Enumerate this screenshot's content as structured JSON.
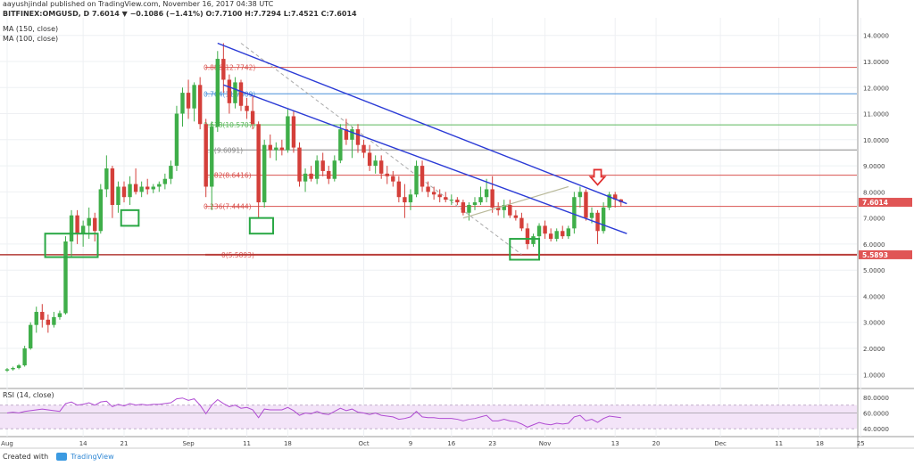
{
  "header": {
    "line1": "aayushjindal published on TradingView.com, November 16, 2017 04:38 UTC",
    "line2": "BITFINEX:OMGUSD, D 7.6014 ▼ −0.1086 (−1.41%) O:7.7100 H:7.7294 L:7.4521 C:7.6014",
    "indicator1": "MA (150, close)",
    "indicator2": "MA (100, close)"
  },
  "footer": {
    "created_with": "Created with",
    "brand": "TradingView"
  },
  "colors": {
    "bull": "#3fae49",
    "bear": "#d43f3a",
    "trend": "#2b3bd6",
    "fib_line": "#d9534f",
    "box": "#2aa845",
    "rsi": "#b04bd3",
    "price_tag": "#e05555"
  },
  "chart_data": [
    {
      "type": "candlestick",
      "symbol": "BITFINEX:OMGUSD",
      "timeframe": "D",
      "ylim": [
        0.6,
        14.4
      ],
      "y_ticks": [
        "1.0000",
        "2.0000",
        "3.0000",
        "4.0000",
        "5.0000",
        "6.0000",
        "7.0000",
        "8.0000",
        "9.0000",
        "10.0000",
        "11.0000",
        "12.0000",
        "13.0000",
        "14.0000"
      ],
      "x_ticks": [
        "Aug",
        "14",
        "21",
        "Sep",
        "11",
        "18",
        "Oct",
        "9",
        "16",
        "23",
        "Nov",
        "13",
        "20",
        "Dec",
        "11",
        "18",
        "25"
      ],
      "x_tick_days": [
        0,
        13,
        20,
        31,
        41,
        48,
        61,
        69,
        76,
        83,
        92,
        104,
        111,
        122,
        132,
        139,
        146
      ],
      "candles": [
        {
          "o": 1.15,
          "h": 1.25,
          "l": 1.1,
          "c": 1.2
        },
        {
          "o": 1.2,
          "h": 1.3,
          "l": 1.15,
          "c": 1.25
        },
        {
          "o": 1.25,
          "h": 1.4,
          "l": 1.2,
          "c": 1.35
        },
        {
          "o": 1.35,
          "h": 2.1,
          "l": 1.3,
          "c": 2.0
        },
        {
          "o": 2.0,
          "h": 3.0,
          "l": 1.95,
          "c": 2.9
        },
        {
          "o": 2.9,
          "h": 3.6,
          "l": 2.6,
          "c": 3.4
        },
        {
          "o": 3.4,
          "h": 3.7,
          "l": 2.8,
          "c": 3.1
        },
        {
          "o": 3.1,
          "h": 3.3,
          "l": 2.6,
          "c": 2.9
        },
        {
          "o": 2.9,
          "h": 3.4,
          "l": 2.8,
          "c": 3.2
        },
        {
          "o": 3.2,
          "h": 3.45,
          "l": 3.1,
          "c": 3.35
        },
        {
          "o": 3.35,
          "h": 6.3,
          "l": 3.3,
          "c": 6.1
        },
        {
          "o": 6.1,
          "h": 7.3,
          "l": 5.5,
          "c": 7.1
        },
        {
          "o": 7.1,
          "h": 7.3,
          "l": 6.0,
          "c": 6.4
        },
        {
          "o": 6.4,
          "h": 6.9,
          "l": 5.9,
          "c": 6.7
        },
        {
          "o": 6.7,
          "h": 7.4,
          "l": 6.2,
          "c": 7.0
        },
        {
          "o": 7.0,
          "h": 7.2,
          "l": 6.1,
          "c": 6.5
        },
        {
          "o": 6.5,
          "h": 8.3,
          "l": 6.4,
          "c": 8.1
        },
        {
          "o": 8.1,
          "h": 9.4,
          "l": 7.8,
          "c": 8.9
        },
        {
          "o": 8.9,
          "h": 9.0,
          "l": 7.0,
          "c": 7.5
        },
        {
          "o": 7.5,
          "h": 8.4,
          "l": 7.2,
          "c": 8.2
        },
        {
          "o": 8.2,
          "h": 8.4,
          "l": 7.6,
          "c": 7.8
        },
        {
          "o": 7.8,
          "h": 8.6,
          "l": 7.5,
          "c": 8.3
        },
        {
          "o": 8.3,
          "h": 8.9,
          "l": 7.9,
          "c": 8.0
        },
        {
          "o": 8.0,
          "h": 8.4,
          "l": 7.8,
          "c": 8.2
        },
        {
          "o": 8.2,
          "h": 8.5,
          "l": 7.9,
          "c": 8.1
        },
        {
          "o": 8.1,
          "h": 8.3,
          "l": 7.95,
          "c": 8.2
        },
        {
          "o": 8.2,
          "h": 8.4,
          "l": 8.0,
          "c": 8.3
        },
        {
          "o": 8.3,
          "h": 8.7,
          "l": 8.1,
          "c": 8.5
        },
        {
          "o": 8.5,
          "h": 9.2,
          "l": 8.3,
          "c": 9.0
        },
        {
          "o": 9.0,
          "h": 11.3,
          "l": 8.8,
          "c": 11.0
        },
        {
          "o": 11.0,
          "h": 12.0,
          "l": 10.5,
          "c": 11.8
        },
        {
          "o": 11.8,
          "h": 12.3,
          "l": 10.8,
          "c": 11.2
        },
        {
          "o": 11.2,
          "h": 12.2,
          "l": 10.7,
          "c": 12.1
        },
        {
          "o": 12.1,
          "h": 12.4,
          "l": 10.4,
          "c": 10.6
        },
        {
          "o": 10.6,
          "h": 10.8,
          "l": 7.8,
          "c": 8.2
        },
        {
          "o": 8.2,
          "h": 10.7,
          "l": 7.3,
          "c": 10.5
        },
        {
          "o": 10.5,
          "h": 13.4,
          "l": 10.3,
          "c": 13.1
        },
        {
          "o": 13.1,
          "h": 13.7,
          "l": 11.8,
          "c": 12.3
        },
        {
          "o": 12.3,
          "h": 12.5,
          "l": 11.0,
          "c": 11.4
        },
        {
          "o": 11.4,
          "h": 12.4,
          "l": 11.2,
          "c": 12.2
        },
        {
          "o": 12.2,
          "h": 12.3,
          "l": 11.1,
          "c": 11.3
        },
        {
          "o": 11.3,
          "h": 11.6,
          "l": 10.8,
          "c": 11.1
        },
        {
          "o": 11.1,
          "h": 11.7,
          "l": 10.4,
          "c": 10.6
        },
        {
          "o": 10.6,
          "h": 10.7,
          "l": 7.0,
          "c": 7.6
        },
        {
          "o": 7.6,
          "h": 10.0,
          "l": 7.4,
          "c": 9.8
        },
        {
          "o": 9.8,
          "h": 10.2,
          "l": 9.3,
          "c": 9.6
        },
        {
          "o": 9.6,
          "h": 9.9,
          "l": 9.2,
          "c": 9.7
        },
        {
          "o": 9.7,
          "h": 10.0,
          "l": 9.4,
          "c": 9.6
        },
        {
          "o": 9.6,
          "h": 11.2,
          "l": 9.5,
          "c": 10.9
        },
        {
          "o": 10.9,
          "h": 11.1,
          "l": 9.5,
          "c": 9.7
        },
        {
          "o": 9.7,
          "h": 9.9,
          "l": 8.2,
          "c": 8.4
        },
        {
          "o": 8.4,
          "h": 8.9,
          "l": 8.0,
          "c": 8.7
        },
        {
          "o": 8.7,
          "h": 9.0,
          "l": 8.4,
          "c": 8.5
        },
        {
          "o": 8.5,
          "h": 9.4,
          "l": 8.3,
          "c": 9.2
        },
        {
          "o": 9.2,
          "h": 9.5,
          "l": 8.6,
          "c": 8.8
        },
        {
          "o": 8.8,
          "h": 9.0,
          "l": 8.3,
          "c": 8.5
        },
        {
          "o": 8.5,
          "h": 9.4,
          "l": 8.4,
          "c": 9.2
        },
        {
          "o": 9.2,
          "h": 10.6,
          "l": 9.1,
          "c": 10.4
        },
        {
          "o": 10.4,
          "h": 10.8,
          "l": 9.8,
          "c": 10.0
        },
        {
          "o": 10.0,
          "h": 10.5,
          "l": 9.3,
          "c": 10.4
        },
        {
          "o": 10.4,
          "h": 10.6,
          "l": 9.5,
          "c": 9.8
        },
        {
          "o": 9.8,
          "h": 10.0,
          "l": 9.3,
          "c": 9.5
        },
        {
          "o": 9.5,
          "h": 9.8,
          "l": 8.8,
          "c": 9.0
        },
        {
          "o": 9.0,
          "h": 9.4,
          "l": 8.7,
          "c": 9.2
        },
        {
          "o": 9.2,
          "h": 9.4,
          "l": 8.5,
          "c": 8.7
        },
        {
          "o": 8.7,
          "h": 9.0,
          "l": 8.3,
          "c": 8.6
        },
        {
          "o": 8.6,
          "h": 8.8,
          "l": 8.2,
          "c": 8.4
        },
        {
          "o": 8.4,
          "h": 8.6,
          "l": 7.6,
          "c": 7.8
        },
        {
          "o": 7.8,
          "h": 8.3,
          "l": 7.0,
          "c": 7.6
        },
        {
          "o": 7.6,
          "h": 8.1,
          "l": 7.3,
          "c": 7.9
        },
        {
          "o": 7.9,
          "h": 9.2,
          "l": 7.8,
          "c": 9.0
        },
        {
          "o": 9.0,
          "h": 9.2,
          "l": 8.0,
          "c": 8.2
        },
        {
          "o": 8.2,
          "h": 8.4,
          "l": 7.8,
          "c": 8.0
        },
        {
          "o": 8.0,
          "h": 8.2,
          "l": 7.7,
          "c": 7.9
        },
        {
          "o": 7.9,
          "h": 8.1,
          "l": 7.6,
          "c": 7.8
        },
        {
          "o": 7.8,
          "h": 8.0,
          "l": 7.6,
          "c": 7.7
        },
        {
          "o": 7.7,
          "h": 7.9,
          "l": 7.5,
          "c": 7.7
        },
        {
          "o": 7.7,
          "h": 7.8,
          "l": 7.5,
          "c": 7.6
        },
        {
          "o": 7.6,
          "h": 7.7,
          "l": 7.1,
          "c": 7.2
        },
        {
          "o": 7.2,
          "h": 7.6,
          "l": 6.9,
          "c": 7.5
        },
        {
          "o": 7.5,
          "h": 7.8,
          "l": 7.3,
          "c": 7.6
        },
        {
          "o": 7.6,
          "h": 8.2,
          "l": 7.5,
          "c": 7.8
        },
        {
          "o": 7.8,
          "h": 8.5,
          "l": 7.6,
          "c": 8.1
        },
        {
          "o": 8.1,
          "h": 8.6,
          "l": 7.2,
          "c": 7.4
        },
        {
          "o": 7.4,
          "h": 7.6,
          "l": 7.1,
          "c": 7.3
        },
        {
          "o": 7.3,
          "h": 7.7,
          "l": 7.0,
          "c": 7.5
        },
        {
          "o": 7.5,
          "h": 7.7,
          "l": 7.0,
          "c": 7.1
        },
        {
          "o": 7.1,
          "h": 7.3,
          "l": 6.9,
          "c": 7.0
        },
        {
          "o": 7.0,
          "h": 7.2,
          "l": 6.5,
          "c": 6.6
        },
        {
          "o": 6.6,
          "h": 6.8,
          "l": 5.8,
          "c": 6.0
        },
        {
          "o": 6.0,
          "h": 6.4,
          "l": 5.9,
          "c": 6.3
        },
        {
          "o": 6.3,
          "h": 6.8,
          "l": 6.0,
          "c": 6.7
        },
        {
          "o": 6.7,
          "h": 6.9,
          "l": 6.2,
          "c": 6.4
        },
        {
          "o": 6.4,
          "h": 6.6,
          "l": 6.1,
          "c": 6.2
        },
        {
          "o": 6.2,
          "h": 6.6,
          "l": 6.1,
          "c": 6.5
        },
        {
          "o": 6.5,
          "h": 6.7,
          "l": 6.2,
          "c": 6.3
        },
        {
          "o": 6.3,
          "h": 6.7,
          "l": 6.2,
          "c": 6.6
        },
        {
          "o": 6.6,
          "h": 8.0,
          "l": 6.4,
          "c": 7.8
        },
        {
          "o": 7.8,
          "h": 8.2,
          "l": 7.4,
          "c": 8.0
        },
        {
          "o": 8.0,
          "h": 8.1,
          "l": 6.9,
          "c": 7.0
        },
        {
          "o": 7.0,
          "h": 7.4,
          "l": 6.8,
          "c": 7.2
        },
        {
          "o": 7.2,
          "h": 7.3,
          "l": 6.0,
          "c": 6.5
        },
        {
          "o": 6.5,
          "h": 7.6,
          "l": 6.4,
          "c": 7.4
        },
        {
          "o": 7.4,
          "h": 8.0,
          "l": 7.3,
          "c": 7.9
        },
        {
          "o": 7.9,
          "h": 8.0,
          "l": 7.4,
          "c": 7.71
        },
        {
          "o": 7.71,
          "h": 7.73,
          "l": 7.45,
          "c": 7.6
        }
      ],
      "fib_levels": [
        {
          "label": "0.886(12.7742)",
          "value": 12.7742
        },
        {
          "label": "0.764(11.7609)",
          "value": 11.7609
        },
        {
          "label": "0.618(10.5707)",
          "value": 10.5707
        },
        {
          "label": "0.5(9.6091)",
          "value": 9.6091
        },
        {
          "label": "0.382(8.6416)",
          "value": 8.6416
        },
        {
          "label": "0.236(7.4444)",
          "value": 7.4444
        },
        {
          "label": "0(5.5893)",
          "value": 5.5893
        }
      ],
      "price_tags": [
        {
          "label": "7.6014",
          "value": 7.6014
        },
        {
          "label": "5.5893",
          "value": 5.5893
        }
      ],
      "trend_lines": [
        {
          "from": [
            36,
            13.7
          ],
          "to": [
            106,
            7.55
          ]
        },
        {
          "from": [
            37,
            12.1
          ],
          "to": [
            106,
            6.4
          ]
        }
      ],
      "channel_line": {
        "from": [
          78,
          7.0
        ],
        "to": [
          96,
          8.2
        ]
      },
      "dashed_line": {
        "from": [
          40,
          13.7
        ],
        "to": [
          88,
          5.6
        ]
      },
      "highlight_boxes": [
        {
          "from_day": 6.5,
          "to_day": 15.5,
          "low": 5.5,
          "high": 6.4
        },
        {
          "from_day": 19.5,
          "to_day": 22.5,
          "low": 6.7,
          "high": 7.3
        },
        {
          "from_day": 41.5,
          "to_day": 45.5,
          "low": 6.4,
          "high": 7.0
        },
        {
          "from_day": 86,
          "to_day": 91,
          "low": 5.4,
          "high": 6.2
        }
      ],
      "arrow_day": 101,
      "arrow_value": 8.1
    },
    {
      "type": "line",
      "title": "RSI (14, close)",
      "ylim": [
        30,
        90
      ],
      "y_ticks": [
        "40.0000",
        "60.0000",
        "80.0000"
      ],
      "band": [
        40,
        70
      ],
      "midline": 60,
      "values": [
        60,
        61,
        60,
        62,
        63,
        64,
        65,
        64,
        63,
        62,
        72,
        74,
        70,
        71,
        73,
        70,
        74,
        75,
        68,
        71,
        69,
        72,
        70,
        71,
        70,
        71,
        71,
        72,
        73,
        78,
        79,
        76,
        78,
        70,
        59,
        70,
        77,
        72,
        68,
        70,
        66,
        67,
        64,
        54,
        65,
        64,
        64,
        64,
        67,
        63,
        57,
        60,
        59,
        62,
        59,
        58,
        62,
        66,
        63,
        65,
        61,
        60,
        58,
        60,
        57,
        56,
        55,
        52,
        53,
        55,
        62,
        55,
        54,
        54,
        53,
        53,
        53,
        52,
        50,
        52,
        53,
        55,
        57,
        50,
        50,
        52,
        50,
        49,
        46,
        42,
        45,
        48,
        46,
        45,
        47,
        46,
        47,
        55,
        57,
        50,
        52,
        48,
        53,
        56,
        55,
        54
      ]
    }
  ]
}
